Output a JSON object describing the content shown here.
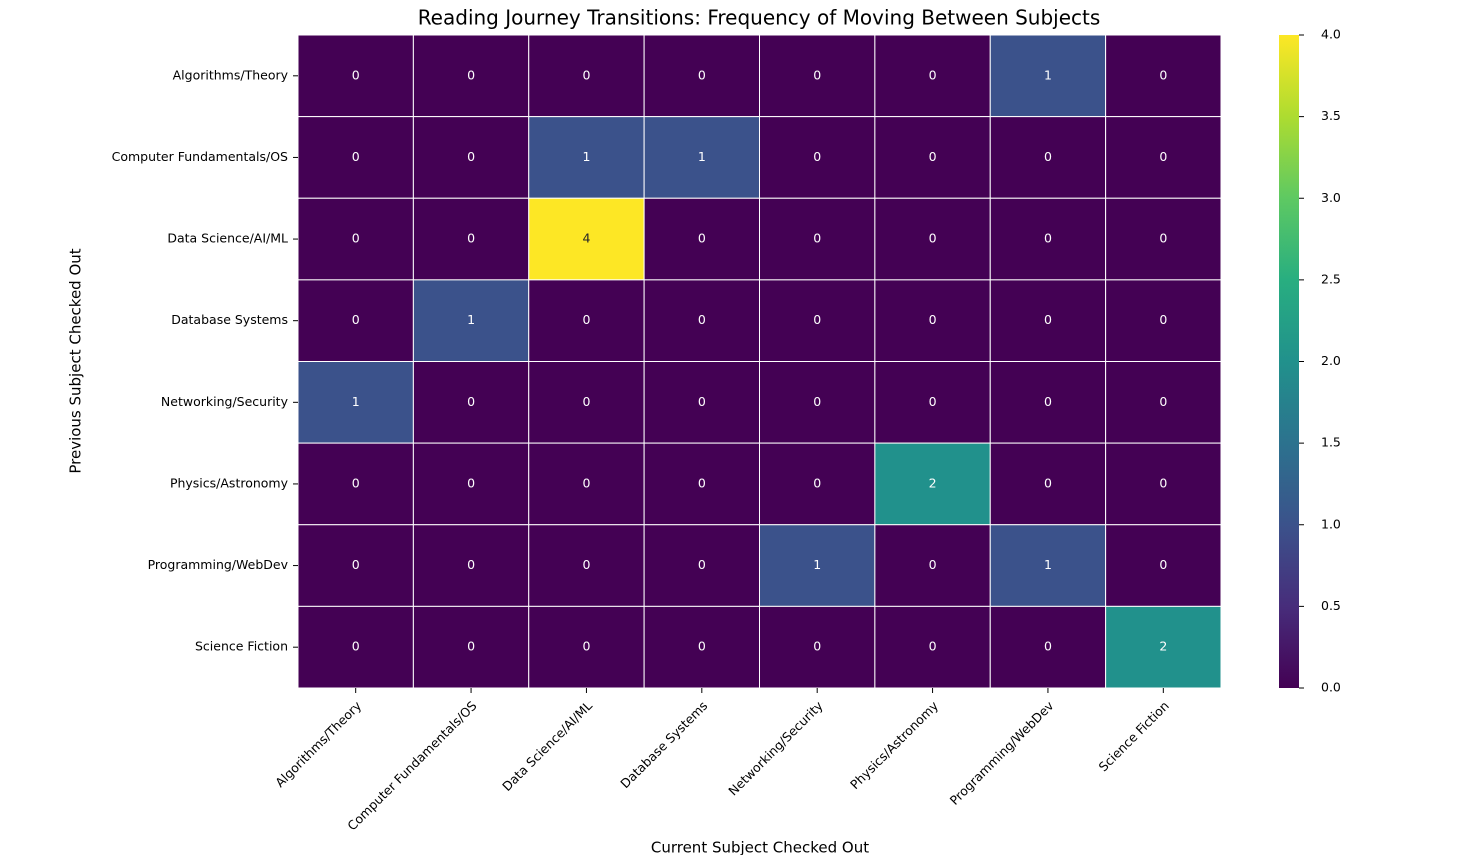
{
  "chart_data": {
    "type": "heatmap",
    "title": "Reading Journey Transitions: Frequency of Moving Between Subjects",
    "x_label": "Current Subject Checked Out",
    "y_label": "Previous Subject Checked Out",
    "x_categories": [
      "Algorithms/Theory",
      "Computer Fundamentals/OS",
      "Data Science/AI/ML",
      "Database Systems",
      "Networking/Security",
      "Physics/Astronomy",
      "Programming/WebDev",
      "Science Fiction"
    ],
    "y_categories": [
      "Algorithms/Theory",
      "Computer Fundamentals/OS",
      "Data Science/AI/ML",
      "Database Systems",
      "Networking/Security",
      "Physics/Astronomy",
      "Programming/WebDev",
      "Science Fiction"
    ],
    "values": [
      [
        0,
        0,
        0,
        0,
        0,
        0,
        1,
        0
      ],
      [
        0,
        0,
        1,
        1,
        0,
        0,
        0,
        0
      ],
      [
        0,
        0,
        4,
        0,
        0,
        0,
        0,
        0
      ],
      [
        0,
        1,
        0,
        0,
        0,
        0,
        0,
        0
      ],
      [
        1,
        0,
        0,
        0,
        0,
        0,
        0,
        0
      ],
      [
        0,
        0,
        0,
        0,
        0,
        2,
        0,
        0
      ],
      [
        0,
        0,
        0,
        0,
        1,
        0,
        1,
        0
      ],
      [
        0,
        0,
        0,
        0,
        0,
        0,
        0,
        2
      ]
    ],
    "colormap": "viridis",
    "zlim": [
      0,
      4
    ],
    "zticks": [
      {
        "value": 0,
        "label": "0.0"
      },
      {
        "value": 0.5,
        "label": "0.5"
      },
      {
        "value": 1,
        "label": "1.0"
      },
      {
        "value": 1.5,
        "label": "1.5"
      },
      {
        "value": 2,
        "label": "2.0"
      },
      {
        "value": 2.5,
        "label": "2.5"
      },
      {
        "value": 3,
        "label": "3.0"
      },
      {
        "value": 3.5,
        "label": "3.5"
      },
      {
        "value": 4,
        "label": "4.0"
      }
    ]
  }
}
